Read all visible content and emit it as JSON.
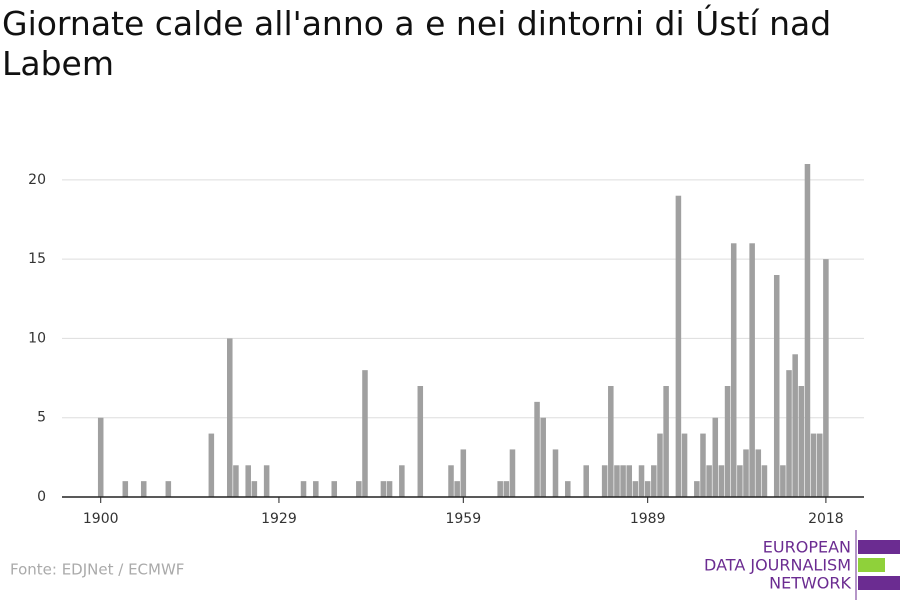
{
  "chart_data": {
    "type": "bar",
    "title": "Giornate calde all'anno a e nei dintorni di Ústí nad Labem",
    "source": "Fonte: EDJNet / ECMWF",
    "logo": [
      "EUROPEAN",
      "DATA JOURNALISM",
      "NETWORK"
    ],
    "x": [
      1900,
      1904,
      1907,
      1911,
      1918,
      1921,
      1922,
      1924,
      1925,
      1927,
      1933,
      1935,
      1938,
      1942,
      1943,
      1946,
      1947,
      1949,
      1952,
      1957,
      1958,
      1959,
      1965,
      1966,
      1967,
      1971,
      1972,
      1974,
      1976,
      1979,
      1982,
      1983,
      1984,
      1985,
      1986,
      1987,
      1988,
      1989,
      1990,
      1991,
      1992,
      1994,
      1995,
      1997,
      1998,
      1999,
      2000,
      2001,
      2002,
      2003,
      2004,
      2005,
      2006,
      2007,
      2008,
      2010,
      2011,
      2012,
      2013,
      2014,
      2015,
      2016,
      2017,
      2018
    ],
    "values": [
      5,
      1,
      1,
      1,
      4,
      10,
      2,
      2,
      1,
      2,
      1,
      1,
      1,
      1,
      8,
      1,
      1,
      2,
      7,
      2,
      1,
      3,
      1,
      1,
      3,
      6,
      5,
      3,
      1,
      2,
      2,
      7,
      2,
      2,
      2,
      1,
      2,
      1,
      2,
      4,
      7,
      19,
      4,
      1,
      4,
      2,
      5,
      2,
      7,
      16,
      2,
      3,
      16,
      3,
      2,
      14,
      2,
      8,
      9,
      7,
      21,
      4,
      4,
      15
    ],
    "color": "#a0a0a0",
    "xlim": [
      1893.7,
      2024.2
    ],
    "xticks": [
      1900,
      1929,
      1959,
      1989,
      2018
    ],
    "ylim": [
      0,
      21
    ],
    "yticks": [
      0,
      5,
      10,
      15,
      20
    ],
    "grid": true
  }
}
